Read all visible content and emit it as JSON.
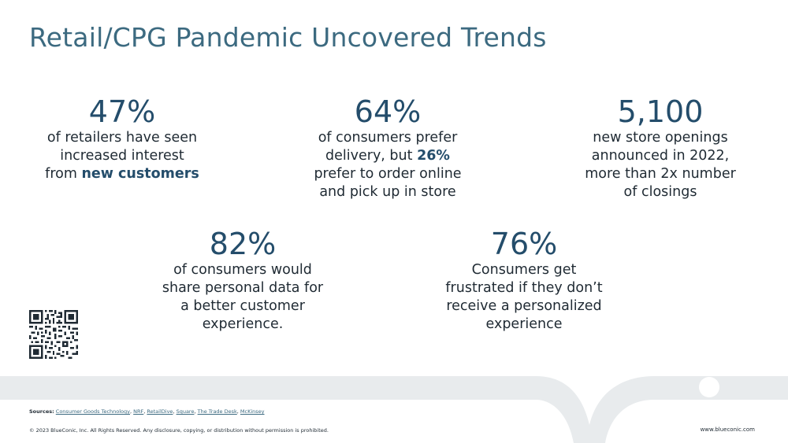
{
  "title": "Retail/CPG Pandemic Uncovered Trends",
  "stats": [
    {
      "value": "47%",
      "desc_lines": [
        "of retailers have seen",
        "increased interest"
      ],
      "desc_pre": "from ",
      "desc_bold": "new customers"
    },
    {
      "value": "64%",
      "line1": "of consumers prefer",
      "line2_pre": "delivery, but ",
      "line2_bold": "26%",
      "line3": "prefer to order online",
      "line4": "and pick up in store"
    },
    {
      "value": "5,100",
      "desc_lines": [
        "new store openings",
        "announced in 2022,",
        "more than 2x number",
        "of closings"
      ]
    },
    {
      "value": "82%",
      "desc_lines": [
        "of consumers would",
        "share personal data for",
        "a better customer",
        "experience."
      ]
    },
    {
      "value": "76%",
      "desc_lines": [
        "Consumers get",
        "frustrated if they don’t",
        "receive a personalized",
        "experience"
      ]
    }
  ],
  "qr": {
    "icon": "qr-code-icon"
  },
  "footer": {
    "sources_label": "Sources:",
    "sources": [
      "Consumer Goods Technology",
      "NRF",
      "RetailDive",
      "Square",
      "The Trade Desk",
      "McKinsey"
    ],
    "copyright": "© 2023 BlueConic, Inc. All Rights Reserved. Any disclosure, copying, or distribution without permission is prohibited.",
    "site": "www.blueconic.com"
  },
  "colors": {
    "title": "#3c6a80",
    "stat": "#244d6b",
    "band": "#e8ebed"
  }
}
